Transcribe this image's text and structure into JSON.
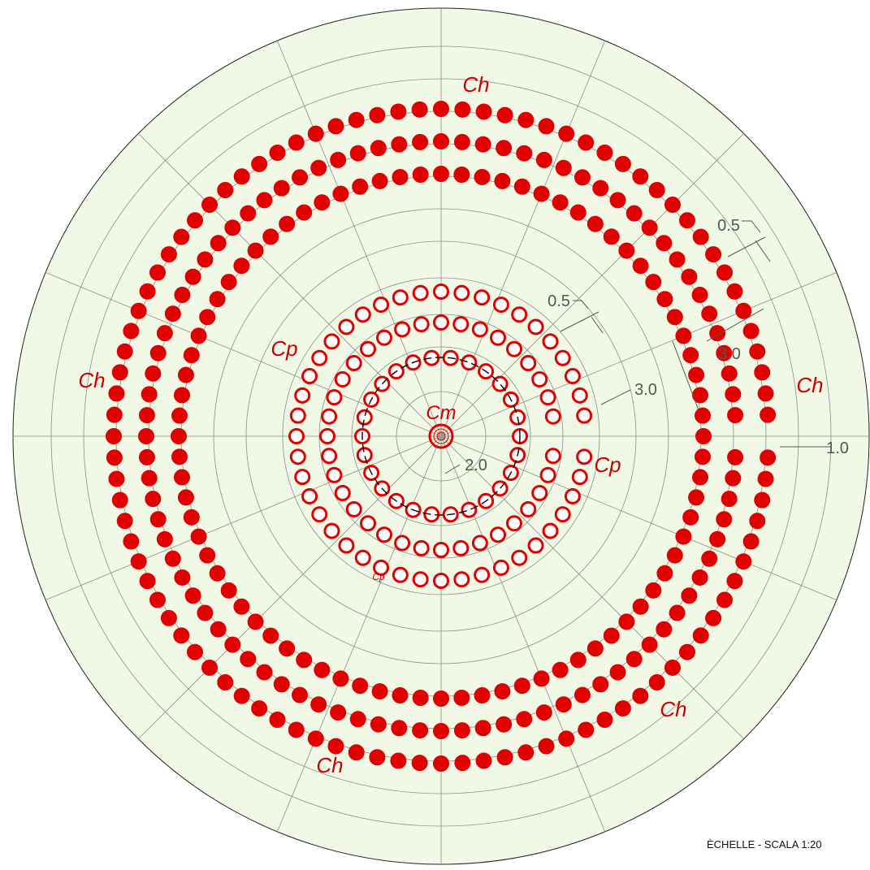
{
  "labels": {
    "ch": "Ch",
    "cp": "Cp",
    "cp_small": "Cp",
    "cm": "Cm"
  },
  "dimensions": {
    "outer_spacing": "0.5",
    "outer_gap": "3.0",
    "edge_clearance": "1.0",
    "inner_spacing": "0.5",
    "inner_gap": "3.0",
    "inner_radius": "2.0"
  },
  "scale_text": "ÈCHELLE  - SCALA 1:20",
  "colors": {
    "background": "#f1f9e6",
    "grid": "#8c8c8c",
    "hole_red": "#e00000",
    "label_red": "#cc0000",
    "dimension": "#555555"
  },
  "rings": [
    {
      "type": "Ch",
      "filled": true
    },
    {
      "type": "Ch",
      "filled": true
    },
    {
      "type": "Ch",
      "filled": true
    },
    {
      "type": "Cp",
      "filled": false
    },
    {
      "type": "Cp",
      "filled": false
    },
    {
      "type": "Cp",
      "filled": false
    },
    {
      "type": "Cm",
      "filled": false
    }
  ]
}
